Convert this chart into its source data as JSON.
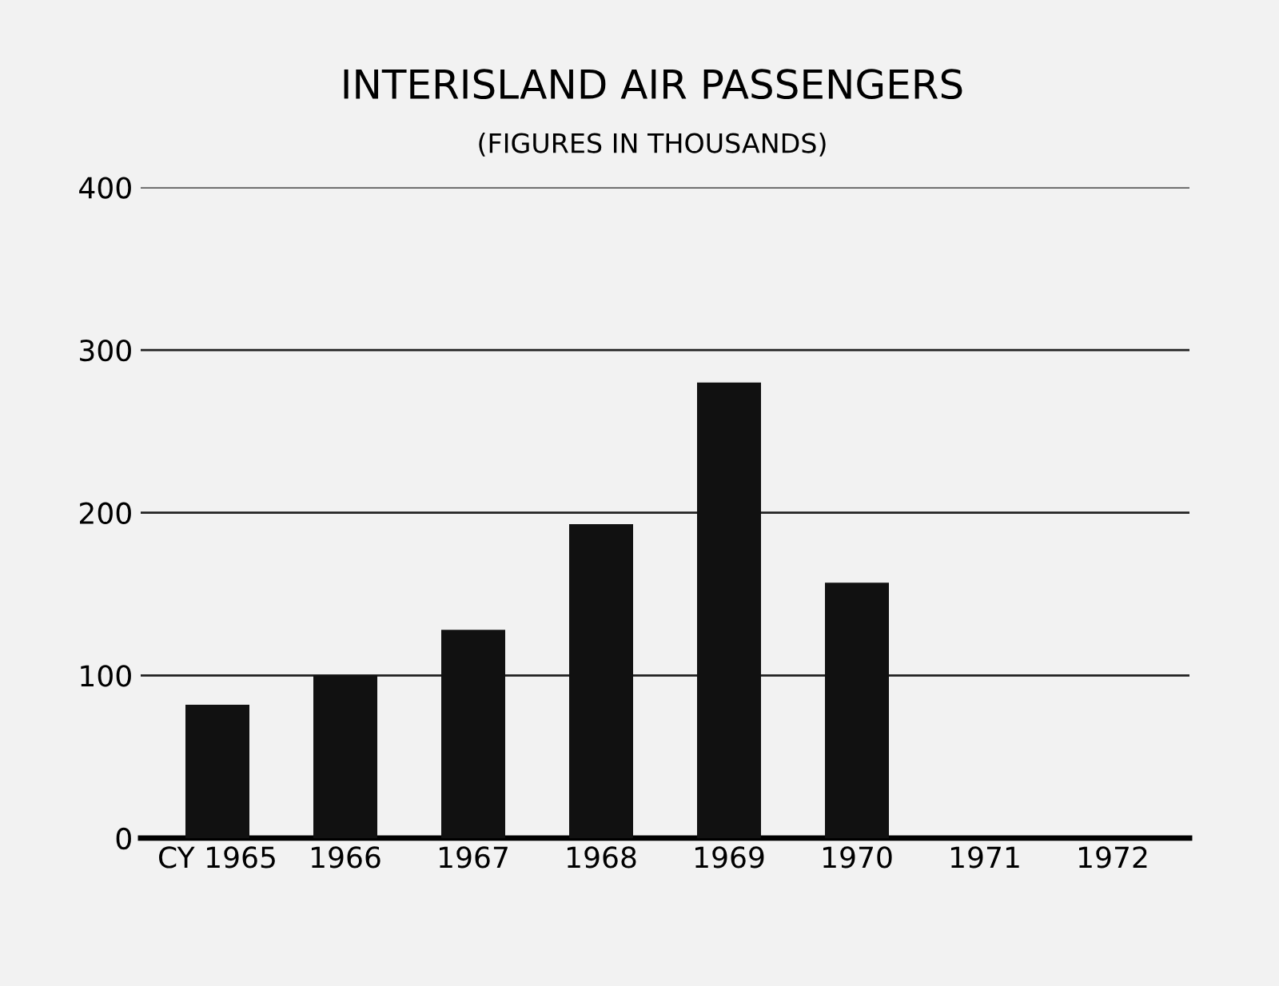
{
  "chart_data": {
    "type": "bar",
    "title": "INTERISLAND AIR PASSENGERS",
    "subtitle": "(FIGURES IN THOUSANDS)",
    "categories": [
      "CY 1965",
      "1966",
      "1967",
      "1968",
      "1969",
      "1970",
      "1971",
      "1972"
    ],
    "values": [
      82,
      100,
      128,
      193,
      280,
      157,
      null,
      null
    ],
    "color": "#111111",
    "ylim": [
      0,
      400
    ],
    "yticks": [
      0,
      100,
      200,
      300,
      400
    ],
    "grid": "y"
  }
}
